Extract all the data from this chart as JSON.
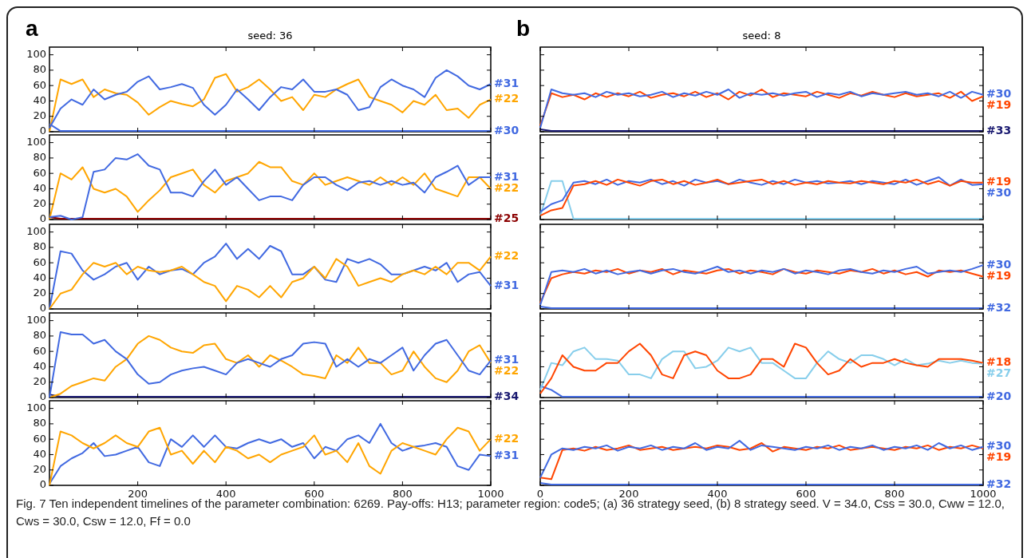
{
  "chart_data": [
    {
      "type": "line",
      "title": "seed: 36",
      "annotations": [
        "a",
        "Fig. 7 Ten independent timelines of the parameter combination: 6269. Pay-offs: H13; parameter region: code5; (a) 36 strategy seed, (b) 8 strategy seed. V = 34.0, Css = 30.0, Cww = 12.0, Cws = 30.0, Csw = 12.0, Ff = 0.0"
      ],
      "x": [
        0,
        25,
        50,
        75,
        100,
        125,
        150,
        175,
        200,
        225,
        250,
        275,
        300,
        325,
        350,
        375,
        400,
        425,
        450,
        475,
        500,
        525,
        550,
        575,
        600,
        625,
        650,
        675,
        700,
        725,
        750,
        775,
        800,
        825,
        850,
        875,
        900,
        925,
        950,
        975,
        1000
      ],
      "xlim": [
        0,
        1000
      ],
      "ylim": [
        0,
        110
      ],
      "yticks": [
        0,
        20,
        40,
        60,
        80,
        100
      ],
      "xticks": [
        200,
        400,
        600,
        800,
        1000
      ],
      "tick_labels": "y",
      "grid": false,
      "legend": false,
      "series": [
        {
          "name": "#31",
          "color": "#4169e1",
          "values": [
            5,
            30,
            42,
            35,
            55,
            42,
            48,
            52,
            65,
            72,
            55,
            58,
            62,
            57,
            35,
            22,
            35,
            55,
            42,
            28,
            45,
            58,
            55,
            68,
            52,
            52,
            55,
            48,
            28,
            32,
            58,
            68,
            60,
            55,
            45,
            70,
            80,
            72,
            60,
            55,
            62
          ]
        },
        {
          "name": "#22",
          "color": "#ffa500",
          "values": [
            0,
            68,
            62,
            68,
            45,
            55,
            50,
            48,
            38,
            22,
            32,
            40,
            36,
            33,
            42,
            70,
            75,
            52,
            58,
            68,
            55,
            40,
            45,
            28,
            48,
            45,
            55,
            62,
            68,
            45,
            40,
            35,
            25,
            40,
            35,
            48,
            28,
            30,
            18,
            35,
            42
          ]
        },
        {
          "name": "#30",
          "color": "#4169e1",
          "values": [
            10,
            1,
            1,
            1,
            1,
            1,
            1,
            1,
            1,
            1,
            1,
            1,
            1,
            1,
            1,
            1,
            1,
            1,
            1,
            1,
            1,
            1,
            1,
            1,
            1,
            1,
            1,
            1,
            1,
            1,
            1,
            1,
            1,
            1,
            1,
            1,
            1,
            1,
            1,
            1,
            1
          ]
        }
      ]
    },
    {
      "type": "line",
      "x": [
        0,
        25,
        50,
        75,
        100,
        125,
        150,
        175,
        200,
        225,
        250,
        275,
        300,
        325,
        350,
        375,
        400,
        425,
        450,
        475,
        500,
        525,
        550,
        575,
        600,
        625,
        650,
        675,
        700,
        725,
        750,
        775,
        800,
        825,
        850,
        875,
        900,
        925,
        950,
        975,
        1000
      ],
      "xlim": [
        0,
        1000
      ],
      "ylim": [
        0,
        110
      ],
      "yticks": [
        0,
        20,
        40,
        60,
        80,
        100
      ],
      "xticks": [
        200,
        400,
        600,
        800,
        1000
      ],
      "tick_labels": "y",
      "grid": false,
      "legend": false,
      "series": [
        {
          "name": "#31",
          "color": "#4169e1",
          "values": [
            3,
            5,
            0,
            3,
            62,
            65,
            80,
            78,
            85,
            70,
            65,
            35,
            35,
            30,
            50,
            65,
            45,
            55,
            40,
            25,
            30,
            30,
            25,
            45,
            55,
            55,
            45,
            38,
            48,
            50,
            45,
            50,
            45,
            48,
            35,
            55,
            62,
            70,
            45,
            55,
            55
          ]
        },
        {
          "name": "#22",
          "color": "#ffa500",
          "values": [
            0,
            60,
            52,
            68,
            40,
            35,
            40,
            30,
            10,
            25,
            38,
            55,
            60,
            65,
            45,
            35,
            50,
            55,
            60,
            75,
            68,
            68,
            50,
            45,
            60,
            45,
            50,
            55,
            50,
            45,
            55,
            45,
            55,
            45,
            60,
            40,
            35,
            30,
            55,
            55,
            40
          ]
        },
        {
          "name": "#25",
          "color": "#8b0000",
          "values": [
            3,
            1,
            1,
            1,
            1,
            1,
            1,
            1,
            1,
            1,
            1,
            1,
            1,
            1,
            1,
            1,
            1,
            1,
            1,
            1,
            1,
            1,
            1,
            1,
            1,
            1,
            1,
            1,
            1,
            1,
            1,
            1,
            1,
            1,
            1,
            1,
            1,
            1,
            1,
            1,
            1
          ]
        }
      ]
    },
    {
      "type": "line",
      "x": [
        0,
        25,
        50,
        75,
        100,
        125,
        150,
        175,
        200,
        225,
        250,
        275,
        300,
        325,
        350,
        375,
        400,
        425,
        450,
        475,
        500,
        525,
        550,
        575,
        600,
        625,
        650,
        675,
        700,
        725,
        750,
        775,
        800,
        825,
        850,
        875,
        900,
        925,
        950,
        975,
        1000
      ],
      "xlim": [
        0,
        1000
      ],
      "ylim": [
        0,
        110
      ],
      "yticks": [
        0,
        20,
        40,
        60,
        80,
        100
      ],
      "xticks": [
        200,
        400,
        600,
        800,
        1000
      ],
      "tick_labels": "y",
      "grid": false,
      "legend": false,
      "series": [
        {
          "name": "#22",
          "color": "#ffa500",
          "values": [
            0,
            20,
            25,
            45,
            60,
            55,
            60,
            45,
            55,
            50,
            48,
            50,
            55,
            45,
            35,
            30,
            10,
            30,
            25,
            15,
            30,
            15,
            35,
            40,
            55,
            40,
            65,
            55,
            30,
            35,
            40,
            35,
            45,
            50,
            45,
            55,
            45,
            60,
            60,
            50,
            68
          ]
        },
        {
          "name": "#31",
          "color": "#4169e1",
          "values": [
            0,
            75,
            72,
            50,
            38,
            45,
            55,
            60,
            38,
            55,
            45,
            50,
            52,
            45,
            60,
            68,
            85,
            65,
            78,
            65,
            82,
            75,
            45,
            45,
            55,
            38,
            35,
            65,
            60,
            65,
            58,
            45,
            45,
            50,
            55,
            50,
            60,
            35,
            45,
            48,
            30
          ]
        }
      ]
    },
    {
      "type": "line",
      "x": [
        0,
        25,
        50,
        75,
        100,
        125,
        150,
        175,
        200,
        225,
        250,
        275,
        300,
        325,
        350,
        375,
        400,
        425,
        450,
        475,
        500,
        525,
        550,
        575,
        600,
        625,
        650,
        675,
        700,
        725,
        750,
        775,
        800,
        825,
        850,
        875,
        900,
        925,
        950,
        975,
        1000
      ],
      "xlim": [
        0,
        1000
      ],
      "ylim": [
        0,
        110
      ],
      "yticks": [
        0,
        20,
        40,
        60,
        80,
        100
      ],
      "xticks": [
        200,
        400,
        600,
        800,
        1000
      ],
      "tick_labels": "y",
      "grid": false,
      "legend": false,
      "series": [
        {
          "name": "#31",
          "color": "#4169e1",
          "values": [
            0,
            85,
            82,
            82,
            70,
            75,
            60,
            50,
            30,
            18,
            20,
            30,
            35,
            38,
            40,
            35,
            30,
            45,
            50,
            45,
            40,
            50,
            55,
            70,
            72,
            70,
            40,
            50,
            40,
            50,
            45,
            55,
            65,
            35,
            55,
            70,
            75,
            55,
            35,
            30,
            48
          ]
        },
        {
          "name": "#22",
          "color": "#ffa500",
          "values": [
            0,
            5,
            15,
            20,
            25,
            22,
            40,
            50,
            70,
            80,
            75,
            65,
            60,
            58,
            68,
            70,
            50,
            45,
            55,
            40,
            55,
            48,
            40,
            30,
            28,
            25,
            55,
            45,
            65,
            45,
            45,
            30,
            35,
            60,
            40,
            25,
            20,
            35,
            60,
            68,
            45
          ]
        },
        {
          "name": "#34",
          "color": "#191970",
          "values": [
            4,
            1,
            1,
            1,
            1,
            1,
            1,
            1,
            1,
            1,
            1,
            1,
            1,
            1,
            1,
            1,
            1,
            1,
            1,
            1,
            1,
            1,
            1,
            1,
            1,
            1,
            1,
            1,
            1,
            1,
            1,
            1,
            1,
            1,
            1,
            1,
            1,
            1,
            1,
            1,
            1
          ]
        }
      ]
    },
    {
      "type": "line",
      "x": [
        0,
        25,
        50,
        75,
        100,
        125,
        150,
        175,
        200,
        225,
        250,
        275,
        300,
        325,
        350,
        375,
        400,
        425,
        450,
        475,
        500,
        525,
        550,
        575,
        600,
        625,
        650,
        675,
        700,
        725,
        750,
        775,
        800,
        825,
        850,
        875,
        900,
        925,
        950,
        975,
        1000
      ],
      "xlim": [
        0,
        1000
      ],
      "ylim": [
        0,
        110
      ],
      "yticks": [
        0,
        20,
        40,
        60,
        80,
        100
      ],
      "xticks": [
        200,
        400,
        600,
        800,
        1000
      ],
      "grid": false,
      "legend": false,
      "series": [
        {
          "name": "#22",
          "color": "#ffa500",
          "values": [
            0,
            70,
            65,
            55,
            48,
            55,
            65,
            55,
            50,
            70,
            75,
            40,
            45,
            28,
            45,
            30,
            50,
            45,
            35,
            40,
            30,
            40,
            45,
            50,
            65,
            40,
            45,
            30,
            55,
            25,
            15,
            45,
            55,
            50,
            45,
            40,
            60,
            75,
            70,
            45,
            60
          ]
        },
        {
          "name": "#31",
          "color": "#4169e1",
          "values": [
            2,
            25,
            35,
            42,
            55,
            38,
            40,
            45,
            50,
            30,
            25,
            60,
            50,
            65,
            50,
            65,
            50,
            48,
            55,
            60,
            55,
            60,
            50,
            55,
            35,
            50,
            45,
            60,
            65,
            55,
            80,
            55,
            45,
            50,
            52,
            55,
            50,
            25,
            20,
            40,
            38
          ]
        }
      ]
    },
    {
      "type": "line",
      "title": "seed: 8",
      "annotations": [
        "b"
      ],
      "x": [
        0,
        25,
        50,
        75,
        100,
        125,
        150,
        175,
        200,
        225,
        250,
        275,
        300,
        325,
        350,
        375,
        400,
        425,
        450,
        475,
        500,
        525,
        550,
        575,
        600,
        625,
        650,
        675,
        700,
        725,
        750,
        775,
        800,
        825,
        850,
        875,
        900,
        925,
        950,
        975,
        1000
      ],
      "xlim": [
        0,
        1000
      ],
      "ylim": [
        0,
        110
      ],
      "yticks": [
        0,
        20,
        40,
        60,
        80,
        100
      ],
      "xticks": [
        0,
        200,
        400,
        600,
        800,
        1000
      ],
      "tick_labels": false,
      "grid": false,
      "legend": false,
      "series": [
        {
          "name": "#30",
          "color": "#4169e1",
          "values": [
            5,
            55,
            50,
            48,
            50,
            45,
            52,
            48,
            50,
            46,
            48,
            52,
            45,
            50,
            47,
            52,
            48,
            55,
            44,
            50,
            48,
            50,
            47,
            50,
            52,
            45,
            50,
            48,
            52,
            46,
            50,
            48,
            50,
            52,
            48,
            50,
            46,
            52,
            44,
            52,
            48
          ]
        },
        {
          "name": "#19",
          "color": "#ff4500",
          "values": [
            8,
            50,
            45,
            48,
            42,
            50,
            45,
            50,
            46,
            52,
            44,
            48,
            50,
            46,
            52,
            45,
            50,
            42,
            52,
            47,
            55,
            45,
            50,
            48,
            46,
            52,
            48,
            44,
            50,
            47,
            52,
            48,
            45,
            50,
            46,
            48,
            50,
            44,
            52,
            40,
            46
          ]
        },
        {
          "name": "#33",
          "color": "#191970",
          "values": [
            3,
            1,
            1,
            1,
            1,
            1,
            1,
            1,
            1,
            1,
            1,
            1,
            1,
            1,
            1,
            1,
            1,
            1,
            1,
            1,
            1,
            1,
            1,
            1,
            1,
            1,
            1,
            1,
            1,
            1,
            1,
            1,
            1,
            1,
            1,
            1,
            1,
            1,
            1,
            1,
            1
          ]
        }
      ]
    },
    {
      "type": "line",
      "x": [
        0,
        25,
        50,
        75,
        100,
        125,
        150,
        175,
        200,
        225,
        250,
        275,
        300,
        325,
        350,
        375,
        400,
        425,
        450,
        475,
        500,
        525,
        550,
        575,
        600,
        625,
        650,
        675,
        700,
        725,
        750,
        775,
        800,
        825,
        850,
        875,
        900,
        925,
        950,
        975,
        1000
      ],
      "xlim": [
        0,
        1000
      ],
      "ylim": [
        0,
        110
      ],
      "yticks": [
        0,
        20,
        40,
        60,
        80,
        100
      ],
      "xticks": [
        0,
        200,
        400,
        600,
        800,
        1000
      ],
      "tick_labels": false,
      "grid": false,
      "legend": false,
      "series": [
        {
          "name": "#19",
          "color": "#ff4500",
          "values": [
            5,
            12,
            15,
            44,
            46,
            50,
            45,
            52,
            48,
            44,
            50,
            52,
            46,
            50,
            45,
            48,
            52,
            46,
            48,
            50,
            52,
            46,
            50,
            45,
            48,
            46,
            50,
            48,
            47,
            50,
            48,
            46,
            50,
            48,
            52,
            46,
            50,
            44,
            50,
            48,
            48
          ]
        },
        {
          "name": "#30",
          "color": "#4169e1",
          "values": [
            10,
            20,
            25,
            48,
            50,
            46,
            52,
            45,
            50,
            48,
            52,
            46,
            50,
            44,
            52,
            48,
            50,
            46,
            52,
            48,
            45,
            50,
            46,
            52,
            48,
            50,
            47,
            48,
            50,
            46,
            50,
            48,
            46,
            52,
            45,
            50,
            55,
            44,
            52,
            45,
            46
          ]
        },
        {
          "color": "#87ceeb",
          "values": [
            5,
            50,
            50,
            1,
            1,
            1,
            1,
            1,
            1,
            1,
            1,
            1,
            1,
            1,
            1,
            1,
            1,
            1,
            1,
            1,
            1,
            1,
            1,
            1,
            1,
            1,
            1,
            1,
            1,
            1,
            1,
            1,
            1,
            1,
            1,
            1,
            1,
            1,
            1,
            1,
            1
          ]
        }
      ]
    },
    {
      "type": "line",
      "x": [
        0,
        25,
        50,
        75,
        100,
        125,
        150,
        175,
        200,
        225,
        250,
        275,
        300,
        325,
        350,
        375,
        400,
        425,
        450,
        475,
        500,
        525,
        550,
        575,
        600,
        625,
        650,
        675,
        700,
        725,
        750,
        775,
        800,
        825,
        850,
        875,
        900,
        925,
        950,
        975,
        1000
      ],
      "xlim": [
        0,
        1000
      ],
      "ylim": [
        0,
        110
      ],
      "yticks": [
        0,
        20,
        40,
        60,
        80,
        100
      ],
      "xticks": [
        0,
        200,
        400,
        600,
        800,
        1000
      ],
      "tick_labels": false,
      "grid": false,
      "legend": false,
      "series": [
        {
          "name": "#30",
          "color": "#4169e1",
          "values": [
            5,
            48,
            50,
            48,
            52,
            46,
            50,
            45,
            48,
            50,
            46,
            50,
            52,
            48,
            46,
            50,
            55,
            48,
            50,
            46,
            50,
            48,
            52,
            46,
            50,
            48,
            45,
            50,
            52,
            48,
            46,
            50,
            48,
            52,
            55,
            46,
            48,
            50,
            48,
            52,
            57
          ]
        },
        {
          "name": "#19",
          "color": "#ff4500",
          "values": [
            8,
            40,
            45,
            48,
            46,
            50,
            48,
            52,
            46,
            50,
            48,
            52,
            45,
            50,
            48,
            46,
            50,
            52,
            46,
            50,
            48,
            45,
            52,
            48,
            46,
            50,
            48,
            46,
            50,
            48,
            52,
            46,
            50,
            45,
            48,
            42,
            50,
            48,
            50,
            46,
            42
          ]
        },
        {
          "name": "#32",
          "color": "#4169e1",
          "values": [
            3,
            1,
            1,
            1,
            1,
            1,
            1,
            1,
            1,
            1,
            1,
            1,
            1,
            1,
            1,
            1,
            1,
            1,
            1,
            1,
            1,
            1,
            1,
            1,
            1,
            1,
            1,
            1,
            1,
            1,
            1,
            1,
            1,
            1,
            1,
            1,
            1,
            1,
            1,
            1,
            1
          ]
        }
      ]
    },
    {
      "type": "line",
      "x": [
        0,
        25,
        50,
        75,
        100,
        125,
        150,
        175,
        200,
        225,
        250,
        275,
        300,
        325,
        350,
        375,
        400,
        425,
        450,
        475,
        500,
        525,
        550,
        575,
        600,
        625,
        650,
        675,
        700,
        725,
        750,
        775,
        800,
        825,
        850,
        875,
        900,
        925,
        950,
        975,
        1000
      ],
      "xlim": [
        0,
        1000
      ],
      "ylim": [
        0,
        110
      ],
      "yticks": [
        0,
        20,
        40,
        60,
        80,
        100
      ],
      "xticks": [
        0,
        200,
        400,
        600,
        800,
        1000
      ],
      "tick_labels": false,
      "grid": false,
      "legend": false,
      "series": [
        {
          "name": "#18",
          "color": "#ff4500",
          "values": [
            5,
            25,
            55,
            40,
            35,
            35,
            45,
            45,
            60,
            70,
            55,
            30,
            25,
            55,
            60,
            55,
            35,
            25,
            25,
            30,
            50,
            50,
            40,
            70,
            65,
            45,
            30,
            35,
            50,
            40,
            45,
            45,
            50,
            45,
            42,
            40,
            50,
            50,
            50,
            48,
            45
          ]
        },
        {
          "name": "#27",
          "color": "#87ceeb",
          "values": [
            10,
            45,
            42,
            60,
            65,
            50,
            50,
            48,
            30,
            30,
            25,
            50,
            60,
            60,
            38,
            40,
            48,
            65,
            60,
            65,
            45,
            45,
            35,
            25,
            25,
            45,
            60,
            50,
            45,
            55,
            55,
            50,
            42,
            50,
            42,
            44,
            48,
            45,
            48,
            45,
            44
          ]
        },
        {
          "name": "#20",
          "color": "#4169e1",
          "values": [
            15,
            10,
            1,
            1,
            1,
            1,
            1,
            1,
            1,
            1,
            1,
            1,
            1,
            1,
            1,
            1,
            1,
            1,
            1,
            1,
            1,
            1,
            1,
            1,
            1,
            1,
            1,
            1,
            1,
            1,
            1,
            1,
            1,
            1,
            1,
            1,
            1,
            1,
            1,
            1,
            1
          ]
        }
      ]
    },
    {
      "type": "line",
      "x": [
        0,
        25,
        50,
        75,
        100,
        125,
        150,
        175,
        200,
        225,
        250,
        275,
        300,
        325,
        350,
        375,
        400,
        425,
        450,
        475,
        500,
        525,
        550,
        575,
        600,
        625,
        650,
        675,
        700,
        725,
        750,
        775,
        800,
        825,
        850,
        875,
        900,
        925,
        950,
        975,
        1000
      ],
      "xlim": [
        0,
        1000
      ],
      "ylim": [
        0,
        110
      ],
      "yticks": [
        0,
        20,
        40,
        60,
        80,
        100
      ],
      "xticks": [
        0,
        200,
        400,
        600,
        800,
        1000
      ],
      "tick_labels": "x",
      "grid": false,
      "legend": false,
      "series": [
        {
          "name": "#30",
          "color": "#4169e1",
          "values": [
            10,
            40,
            48,
            46,
            50,
            48,
            52,
            45,
            50,
            48,
            52,
            46,
            50,
            48,
            55,
            46,
            50,
            48,
            58,
            46,
            52,
            50,
            48,
            46,
            50,
            48,
            52,
            46,
            50,
            48,
            52,
            46,
            50,
            48,
            52,
            46,
            55,
            48,
            52,
            46,
            50
          ]
        },
        {
          "name": "#19",
          "color": "#ff4500",
          "values": [
            10,
            8,
            46,
            48,
            45,
            50,
            46,
            48,
            52,
            46,
            48,
            50,
            46,
            48,
            50,
            48,
            52,
            50,
            46,
            48,
            55,
            44,
            50,
            48,
            46,
            50,
            48,
            52,
            46,
            48,
            50,
            48,
            46,
            50,
            48,
            52,
            46,
            50,
            48,
            52,
            48
          ]
        },
        {
          "name": "#32",
          "color": "#4169e1",
          "values": [
            3,
            1,
            1,
            1,
            1,
            1,
            1,
            1,
            1,
            1,
            1,
            1,
            1,
            1,
            1,
            1,
            1,
            1,
            1,
            1,
            1,
            1,
            1,
            1,
            1,
            1,
            1,
            1,
            1,
            1,
            1,
            1,
            1,
            1,
            1,
            1,
            1,
            1,
            1,
            1,
            1
          ]
        }
      ]
    }
  ]
}
